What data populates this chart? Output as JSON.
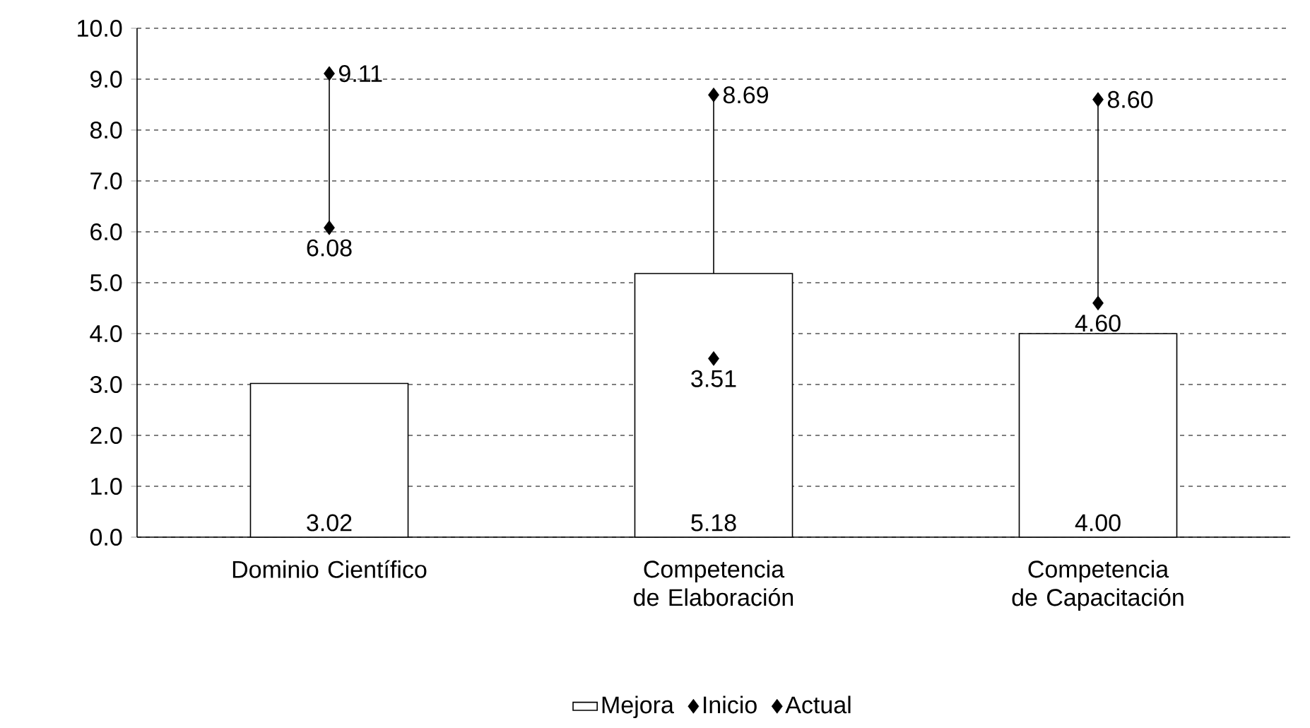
{
  "chart_data": {
    "type": "bar",
    "categories": [
      "Dominio Científico",
      "Competencia de Elaboración",
      "Competencia de Capacitación"
    ],
    "series": [
      {
        "name": "Mejora",
        "color": "#ffffff",
        "values": [
          3.02,
          5.18,
          4.0
        ],
        "value_labels": [
          "3.02",
          "5.18",
          "4.00"
        ]
      },
      {
        "name": "Inicio",
        "type": "scatter",
        "color": "#000000",
        "values": [
          6.08,
          3.51,
          4.6
        ],
        "value_labels": [
          "6.08",
          "3.51",
          "4.60"
        ]
      },
      {
        "name": "Actual",
        "type": "scatter",
        "color": "#000000",
        "values": [
          9.11,
          8.69,
          8.6
        ],
        "value_labels": [
          "9.11",
          "8.69",
          "8.60"
        ]
      }
    ],
    "ylim": [
      0,
      10
    ],
    "yticks": [
      {
        "value": 0,
        "label": "0.0"
      },
      {
        "value": 1,
        "label": "1.0"
      },
      {
        "value": 2,
        "label": "2.0"
      },
      {
        "value": 3,
        "label": "3.0"
      },
      {
        "value": 4,
        "label": "4.0"
      },
      {
        "value": 5,
        "label": "5.0"
      },
      {
        "value": 6,
        "label": "6.0"
      },
      {
        "value": 7,
        "label": "7.0"
      },
      {
        "value": 8,
        "label": "8.0"
      },
      {
        "value": 9,
        "label": "9.0"
      },
      {
        "value": 10,
        "label": "10.0"
      }
    ],
    "grid": "y",
    "legend": "bottom",
    "marker": "diamond"
  }
}
